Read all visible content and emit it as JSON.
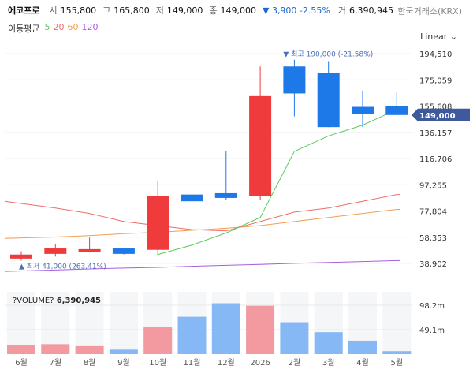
{
  "header": {
    "stock_name": "에코프로",
    "open_label": "시",
    "open_value": "155,800",
    "high_label": "고",
    "high_value": "165,800",
    "low_label": "저",
    "low_value": "149,000",
    "close_label": "종",
    "close_value": "149,000",
    "change": "▼ 3,900 -2.55%",
    "volume_label": "거",
    "volume_value": "6,390,945",
    "exchange": "한국거래소(KRX)"
  },
  "ma_legend": {
    "title": "이동평균",
    "items": [
      "5",
      "20",
      "60",
      "120"
    ]
  },
  "scale_button": "Linear",
  "colors": {
    "up": "#ef3b3b",
    "down": "#1d78e8",
    "ma5": "#5bc85b",
    "ma20": "#ef6b6b",
    "ma60": "#f0a050",
    "ma120": "#a560e0",
    "up_volume": "#f29a9f",
    "down_volume": "#85b8f5",
    "price_badge": "#3e5a9c"
  },
  "chart_data": {
    "type": "candlestick",
    "x": [
      "6월",
      "7월",
      "8월",
      "9월",
      "10월",
      "11월",
      "12월",
      "2026",
      "2월",
      "3월",
      "4월",
      "5월"
    ],
    "open": [
      42500,
      46000,
      47500,
      50000,
      49000,
      90000,
      91000,
      89000,
      185000,
      180000,
      155000,
      155800
    ],
    "high": [
      48000,
      53000,
      58000,
      50500,
      100000,
      101000,
      122000,
      185000,
      190000,
      189000,
      167000,
      165800
    ],
    "low": [
      41000,
      44000,
      47000,
      45500,
      45000,
      74000,
      86000,
      86000,
      148000,
      140000,
      140000,
      149000
    ],
    "close": [
      45500,
      50000,
      49500,
      46000,
      89000,
      85000,
      87500,
      163000,
      165000,
      140000,
      150000,
      149000
    ],
    "ma5": [
      null,
      null,
      null,
      null,
      45500,
      52500,
      61500,
      73000,
      122000,
      133500,
      141500,
      153000
    ],
    "ma20": [
      85000,
      80000,
      76000,
      70000,
      67000,
      64000,
      63000,
      70000,
      77000,
      80000,
      85000,
      90000
    ],
    "ma60": [
      57500,
      58500,
      59500,
      61000,
      62000,
      63500,
      65000,
      67000,
      70000,
      73000,
      76000,
      79000
    ],
    "ma120": [
      33000,
      34000,
      34800,
      35500,
      36000,
      36800,
      37500,
      38200,
      39000,
      39600,
      40300,
      41000
    ],
    "volume_m": [
      18,
      20,
      16,
      9,
      55,
      75,
      102,
      97,
      64,
      44,
      27,
      6
    ],
    "y_ticks": [
      "194,510",
      "175,059",
      "155,608",
      "136,157",
      "116,706",
      "97,255",
      "77,804",
      "58,353",
      "38,902"
    ],
    "y_tick_values": [
      194510,
      175059,
      155608,
      136157,
      116706,
      97255,
      77804,
      58353,
      38902
    ],
    "ylim": [
      33000,
      200000
    ],
    "volume_ticks": [
      "98.2m",
      "49.1m"
    ],
    "volume_tick_values": [
      98.2,
      49.1
    ],
    "current_price_label": "149,000",
    "current_price": 149000,
    "max_annotation": "최고 190,000 (-21.58%)",
    "min_annotation": "최저 41,000 (263.41%)",
    "max_point": {
      "index": 8,
      "value": 190000
    },
    "min_point": {
      "index": 0,
      "value": 41000
    },
    "volume_title": "?VOLUME?",
    "volume_value": "6,390,945"
  }
}
